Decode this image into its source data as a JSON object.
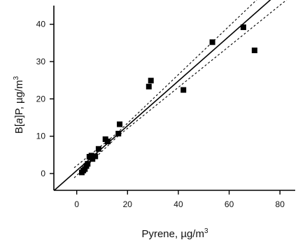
{
  "chart_data": {
    "type": "scatter",
    "title": "",
    "xlabel": "Pyrene, µg/m",
    "xlabel_sup": "3",
    "ylabel_pre": "B[",
    "ylabel_italic": "a",
    "ylabel_post": "]P, µg/m",
    "ylabel_sup": "3",
    "xlim": [
      -9,
      86
    ],
    "ylim": [
      -4.5,
      45
    ],
    "x_ticks": [
      0,
      20,
      40,
      60,
      80
    ],
    "y_ticks": [
      0,
      10,
      20,
      30,
      40
    ],
    "points": [
      {
        "x": 2.0,
        "y": 0.3
      },
      {
        "x": 2.6,
        "y": 0.8
      },
      {
        "x": 3.2,
        "y": 1.2
      },
      {
        "x": 3.8,
        "y": 2.0
      },
      {
        "x": 4.3,
        "y": 2.6
      },
      {
        "x": 5.0,
        "y": 4.5
      },
      {
        "x": 5.8,
        "y": 4.8
      },
      {
        "x": 6.2,
        "y": 3.9
      },
      {
        "x": 7.3,
        "y": 4.6
      },
      {
        "x": 8.6,
        "y": 6.6
      },
      {
        "x": 11.3,
        "y": 9.2
      },
      {
        "x": 12.2,
        "y": 8.6
      },
      {
        "x": 16.4,
        "y": 10.7
      },
      {
        "x": 16.9,
        "y": 13.2
      },
      {
        "x": 28.4,
        "y": 23.3
      },
      {
        "x": 29.2,
        "y": 24.9
      },
      {
        "x": 42.0,
        "y": 22.4
      },
      {
        "x": 53.4,
        "y": 35.2
      },
      {
        "x": 65.6,
        "y": 39.2
      },
      {
        "x": 70.0,
        "y": 33.0
      }
    ],
    "regression": {
      "slope": 0.6,
      "intercept": 0.8
    },
    "confidence_band": {
      "offset_at_mean": 0.5,
      "x_mean": 16,
      "spread_factor": 0.05
    },
    "grid": false,
    "legend": "none"
  }
}
